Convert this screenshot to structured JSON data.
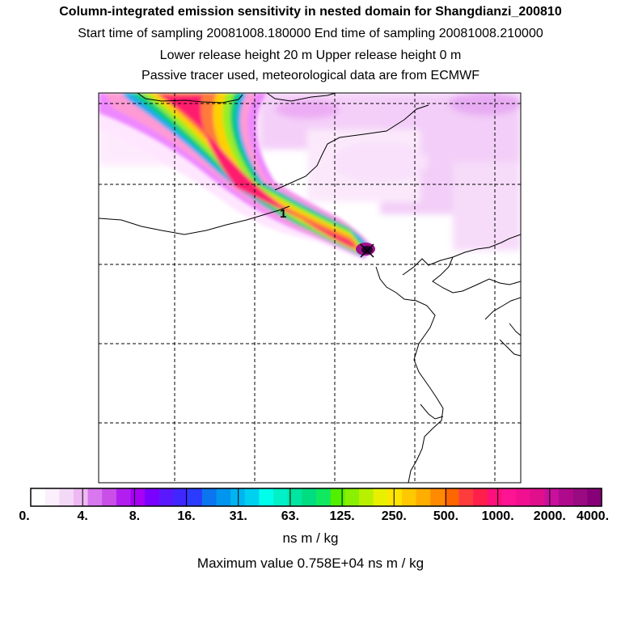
{
  "header": {
    "title": "Column-integrated emission sensitivity in nested domain for Shangdianzi_200810",
    "line2": "Start time of sampling 20081008.180000     End time of sampling 20081008.210000",
    "line3": "Lower release height   20 m          Upper release height    0 m",
    "line4": "Passive tracer used, meteorological data are from ECMWF"
  },
  "map": {
    "release_marker_label": "1",
    "grid": true,
    "plume_colors": [
      "#ffe6ff",
      "#ee88ff",
      "#ff9ad5",
      "#ff1f6e",
      "#ff7a3a",
      "#ffd000",
      "#99ee22",
      "#00cc77",
      "#22aaee"
    ],
    "max_color": "#2a0033"
  },
  "colorbar": {
    "labels": [
      "0.",
      "4.",
      "8.",
      "16.",
      "31.",
      "63.",
      "125.",
      "250.",
      "500.",
      "1000.",
      "2000.",
      "4000."
    ],
    "colors": [
      "#ffffff",
      "#fbeffb",
      "#f4d9f6",
      "#eeb8f2",
      "#d877ee",
      "#c94fe8",
      "#b21ef0",
      "#a700f5",
      "#7a00ff",
      "#5a18ff",
      "#3e28ff",
      "#2b3bff",
      "#0a75ee",
      "#0095ee",
      "#00b4f0",
      "#00d0f0",
      "#00ffea",
      "#00f0c8",
      "#00e6a0",
      "#00dd80",
      "#10e860",
      "#50f000",
      "#88f000",
      "#b8f000",
      "#e8f000",
      "#ffe400",
      "#ffc800",
      "#ffae00",
      "#ff8a00",
      "#ff6600",
      "#ff3c3c",
      "#ff1f4a",
      "#ff0f7c",
      "#ff1493",
      "#f01090",
      "#e00f8c",
      "#c8109c",
      "#b00a8c",
      "#9a0a80",
      "#880078"
    ],
    "units": "ns m / kg",
    "max_value": "Maximum value  0.758E+04 ns m / kg"
  }
}
